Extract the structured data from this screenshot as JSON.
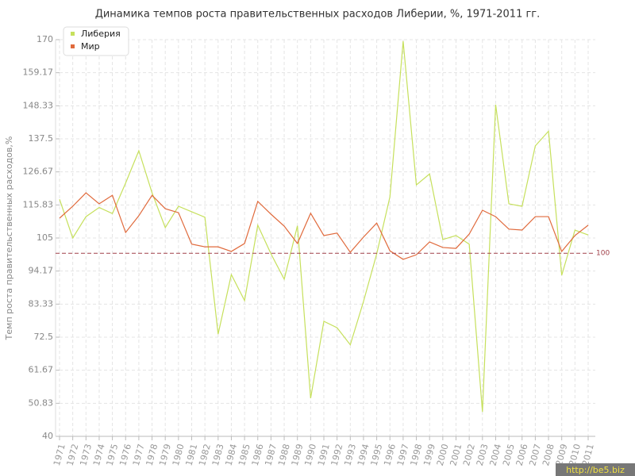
{
  "chart_data": {
    "type": "line",
    "title": "Динамика темпов роста правительственных расходов Либерии, %, 1971-2011 гг.",
    "y_label": "Темп роста правительственных расходов,%",
    "categories": [
      "1971",
      "1972",
      "1973",
      "1974",
      "1975",
      "1976",
      "1977",
      "1978",
      "1979",
      "1980",
      "1981",
      "1982",
      "1983",
      "1984",
      "1985",
      "1986",
      "1987",
      "1988",
      "1989",
      "1990",
      "1991",
      "1992",
      "1993",
      "1994",
      "1995",
      "1996",
      "1997",
      "1998",
      "1999",
      "2000",
      "2001",
      "2002",
      "2003",
      "2004",
      "2005",
      "2006",
      "2007",
      "2008",
      "2009",
      "2010",
      "2011"
    ],
    "series": [
      {
        "name": "Либерия",
        "color": "#c6e05c",
        "values": [
          117.7,
          105,
          112,
          115,
          113,
          123,
          133.6,
          119.8,
          108.4,
          115.4,
          113.6,
          111.8,
          73.5,
          93,
          84.5,
          109.2,
          99.8,
          91.5,
          109,
          52.5,
          77.7,
          75.6,
          70,
          84.2,
          99.8,
          118.5,
          169.5,
          122.4,
          126,
          104.5,
          105.8,
          103,
          48,
          148.7,
          116.2,
          115.4,
          135.2,
          140,
          92.8,
          107.6,
          106
        ]
      },
      {
        "name": "Мир",
        "color": "#e06a3c",
        "values": [
          111.5,
          115.4,
          119.8,
          116.2,
          119,
          106.8,
          112.3,
          119,
          114.6,
          113.3,
          103,
          102.1,
          102.1,
          100.6,
          103.2,
          117,
          112.8,
          108.9,
          103.2,
          113.1,
          105.8,
          106.6,
          100.3,
          105.3,
          109.9,
          100.8,
          98,
          99.5,
          103.7,
          101.9,
          101.6,
          106.3,
          114.1,
          112,
          107.9,
          107.6,
          112,
          112,
          100.6,
          105.8,
          109.2
        ]
      }
    ],
    "ylim": [
      40,
      170
    ],
    "yticks": [
      40,
      50.83,
      61.67,
      72.5,
      83.33,
      94.17,
      105,
      115.83,
      126.67,
      137.5,
      148.33,
      159.17,
      170
    ],
    "hline": 100,
    "grid": true,
    "legend": "top-left",
    "watermark": "http://be5.biz"
  }
}
